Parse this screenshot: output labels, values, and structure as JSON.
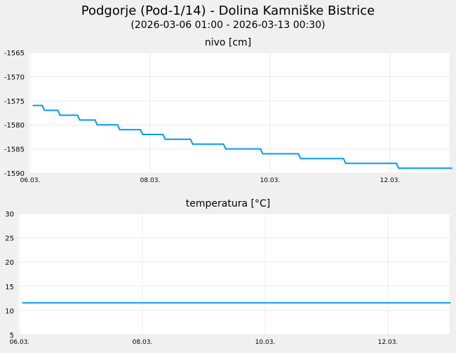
{
  "title": "Podgorje (Pod-1/14) - Dolina Kamniške Bistrice",
  "subtitle": "(2026-03-06 01:00 - 2026-03-13 00:30)",
  "colors": {
    "line": "#0099ff",
    "grid": "#ebebeb",
    "bg": "#f0f0f0",
    "plot_bg": "#ffffff"
  },
  "chart_data": [
    {
      "type": "line",
      "title": "nivo [cm]",
      "xlabel": "",
      "ylabel": "",
      "ylim": [
        -1590,
        -1565
      ],
      "yticks": [
        -1565,
        -1570,
        -1575,
        -1580,
        -1585,
        -1590
      ],
      "x_unit": "hours since 06.03. 00:00",
      "xlim": [
        0,
        168.5
      ],
      "xticks": [
        {
          "at": 0,
          "label": "06.03."
        },
        {
          "at": 48,
          "label": "08.03."
        },
        {
          "at": 96,
          "label": "10.03."
        },
        {
          "at": 144,
          "label": "12.03."
        }
      ],
      "grid": true,
      "step": true,
      "x": [
        1,
        5.3,
        11.5,
        19.4,
        26.4,
        35.4,
        44.6,
        53.6,
        64.6,
        77.8,
        92.6,
        107.8,
        125.8,
        147,
        168.5
      ],
      "values": [
        -1576,
        -1577,
        -1578,
        -1579,
        -1580,
        -1581,
        -1582,
        -1583,
        -1584,
        -1585,
        -1586,
        -1587,
        -1588,
        -1589,
        -1589
      ]
    },
    {
      "type": "line",
      "title": "temperatura [°C]",
      "xlabel": "",
      "ylabel": "",
      "ylim": [
        5,
        30
      ],
      "yticks": [
        30,
        25,
        20,
        15,
        10,
        5
      ],
      "x_unit": "hours since 06.03. 00:00",
      "xlim": [
        0,
        168.5
      ],
      "xticks": [
        {
          "at": 0,
          "label": "06.03."
        },
        {
          "at": 48,
          "label": "08.03."
        },
        {
          "at": 96,
          "label": "10.03."
        },
        {
          "at": 144,
          "label": "12.03."
        }
      ],
      "grid": true,
      "step": false,
      "x": [
        1,
        168.5
      ],
      "values": [
        11.6,
        11.6
      ]
    }
  ]
}
